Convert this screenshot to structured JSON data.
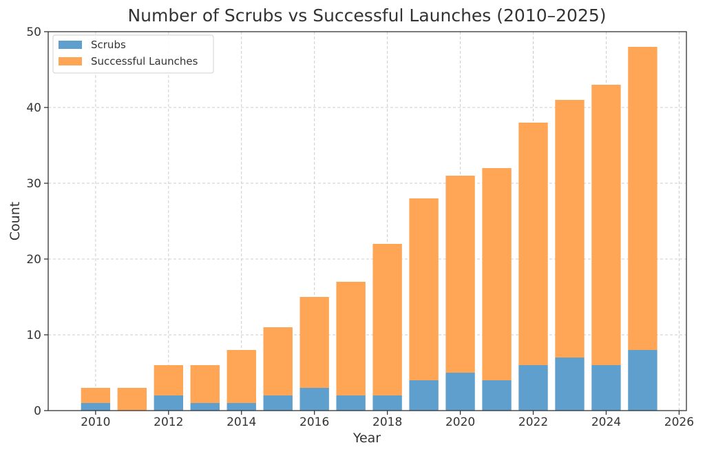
{
  "chart_data": {
    "type": "bar",
    "stacked": true,
    "title": "Number of Scrubs vs Successful Launches (2010–2025)",
    "xlabel": "Year",
    "ylabel": "Count",
    "x": [
      2010,
      2011,
      2012,
      2013,
      2014,
      2015,
      2016,
      2017,
      2018,
      2019,
      2020,
      2021,
      2022,
      2023,
      2024,
      2025
    ],
    "series": [
      {
        "name": "Scrubs",
        "color": "#5f9fcd",
        "values": [
          1,
          0,
          2,
          1,
          1,
          2,
          3,
          2,
          2,
          4,
          5,
          4,
          6,
          7,
          6,
          8
        ]
      },
      {
        "name": "Successful Launches",
        "color": "#ffa556",
        "values": [
          2,
          3,
          4,
          5,
          7,
          9,
          12,
          15,
          20,
          24,
          26,
          28,
          32,
          34,
          37,
          40
        ]
      }
    ],
    "xlim": [
      2008.7,
      2026.2
    ],
    "ylim": [
      0,
      50
    ],
    "xticks": [
      2010,
      2012,
      2014,
      2016,
      2018,
      2020,
      2022,
      2024,
      2026
    ],
    "yticks": [
      0,
      10,
      20,
      30,
      40,
      50
    ],
    "grid": true,
    "legend_position": "top-left"
  }
}
